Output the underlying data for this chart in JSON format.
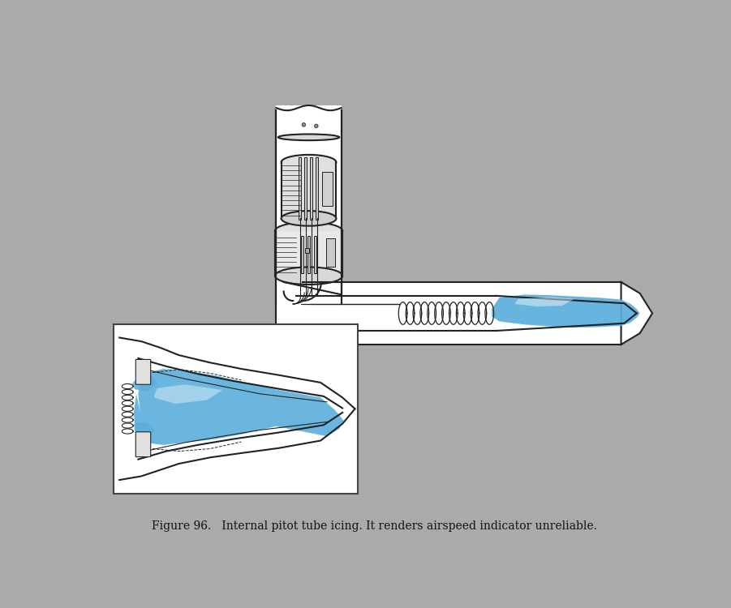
{
  "background_color": "#aaaaaa",
  "white": "#ffffff",
  "black": "#000000",
  "ice_blue": "#5aaedc",
  "line_color": "#222222",
  "line_width": 1.5,
  "caption": "Figure 96.   Internal pitot tube icing. It renders airspeed indicator unreliable."
}
